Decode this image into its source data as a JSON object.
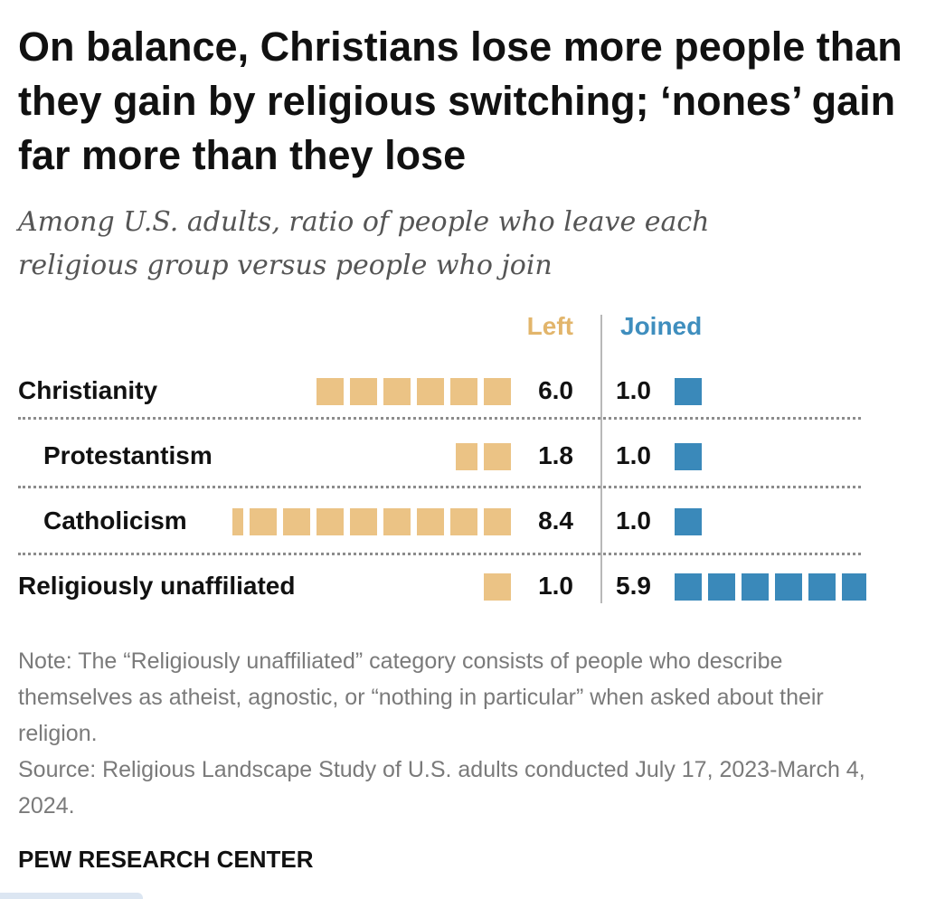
{
  "title": "On balance, Christians lose more people than they gain by religious switching; ‘nones’ gain far more than they lose",
  "subtitle": "Among U.S. adults, ratio of people who leave each religious group versus people who join",
  "chart_data": {
    "type": "bar",
    "title": "On balance, Christians lose more people than they gain by religious switching; ‘nones’ gain far more than they lose",
    "subtitle": "Among U.S. adults, ratio of people who leave each religious group versus people who join",
    "categories": [
      "Christianity",
      "Protestantism",
      "Catholicism",
      "Religiously unaffiliated"
    ],
    "series": [
      {
        "name": "Left",
        "values": [
          6.0,
          1.8,
          8.4,
          1.0
        ],
        "labels": [
          "6.0",
          "1.8",
          "8.4",
          "1.0"
        ],
        "color": "#EBC385"
      },
      {
        "name": "Joined",
        "values": [
          1.0,
          1.0,
          1.0,
          5.9
        ],
        "labels": [
          "1.0",
          "1.0",
          "1.0",
          "5.9"
        ],
        "color": "#3A89BA"
      }
    ],
    "header_colors": {
      "left": "#E2B56B",
      "joined": "#3F8EBE"
    },
    "unit": "each square = 1 person"
  },
  "note": "Note: The “Religiously unaffiliated” category consists of people who describe themselves as atheist, agnostic, or “nothing in particular” when asked about their religion.",
  "source": "Source: Religious Landscape Study of U.S. adults conducted July 17, 2023-March 4, 2024.",
  "brand": "PEW RESEARCH CENTER"
}
